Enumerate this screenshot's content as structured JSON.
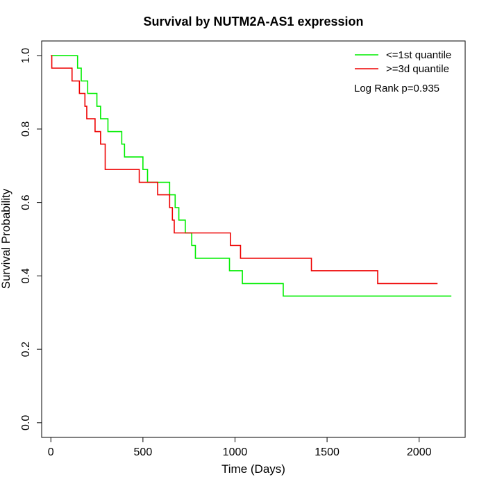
{
  "chart_data": {
    "type": "line",
    "step": true,
    "title": "Survival by NUTM2A-AS1 expression",
    "xlabel": "Time (Days)",
    "ylabel": "Survival Probability",
    "xlim": [
      -50,
      2250
    ],
    "ylim": [
      -0.04,
      1.04
    ],
    "xticks": [
      0,
      500,
      1000,
      1500,
      2000
    ],
    "xtick_labels": [
      "0",
      "500",
      "1000",
      "1500",
      "2000"
    ],
    "yticks": [
      0.0,
      0.2,
      0.4,
      0.6,
      0.8,
      1.0
    ],
    "ytick_labels": [
      "0.0",
      "0.2",
      "0.4",
      "0.6",
      "0.8",
      "1.0"
    ],
    "grid": false,
    "legend_position": "top-right",
    "annotation": "Log Rank p=0.935",
    "series": [
      {
        "name": "<=1st quantile",
        "color": "#00ee00",
        "x": [
          0,
          125,
          145,
          165,
          200,
          250,
          270,
          310,
          385,
          400,
          500,
          525,
          645,
          675,
          695,
          730,
          765,
          785,
          970,
          1030,
          1040,
          1262,
          2175
        ],
        "y": [
          1.0,
          1.0,
          0.966,
          0.931,
          0.897,
          0.862,
          0.828,
          0.793,
          0.759,
          0.724,
          0.69,
          0.655,
          0.621,
          0.586,
          0.552,
          0.517,
          0.483,
          0.448,
          0.414,
          0.414,
          0.379,
          0.345,
          0.345
        ]
      },
      {
        "name": ">=3d quantile",
        "color": "#ee0000",
        "x": [
          0,
          5,
          115,
          155,
          185,
          195,
          240,
          270,
          295,
          480,
          580,
          645,
          660,
          670,
          975,
          1030,
          1415,
          1775,
          2100
        ],
        "y": [
          1.0,
          0.966,
          0.931,
          0.897,
          0.862,
          0.828,
          0.793,
          0.759,
          0.69,
          0.655,
          0.621,
          0.586,
          0.552,
          0.517,
          0.483,
          0.448,
          0.414,
          0.379,
          0.379
        ]
      }
    ]
  }
}
